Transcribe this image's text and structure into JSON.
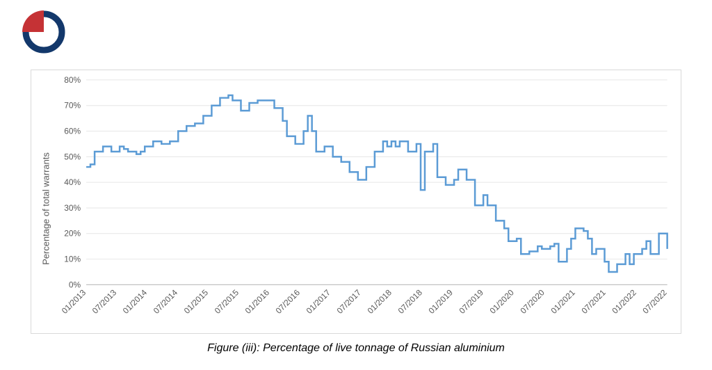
{
  "logo": {
    "ring_color": "#13386b",
    "wedge_color": "#c53235",
    "ring_stroke": 9
  },
  "caption": "Figure (iii): Percentage of live tonnage of Russian aluminium",
  "chart": {
    "type": "line-step",
    "ylabel": "Percentage of total warrants",
    "ylabel_fontsize": 13,
    "xlabel_fontsize": 12,
    "tick_fontsize": 12,
    "background_color": "#ffffff",
    "border_color": "#d9d9d9",
    "grid_color": "#e6e6e6",
    "baseline_color": "#bfbfbf",
    "series_color": "#5b9bd5",
    "series_width": 2.5,
    "ylim": [
      0,
      80
    ],
    "ytick_step": 10,
    "ytick_format_suffix": "%",
    "x_categories": [
      "01/2013",
      "07/2013",
      "01/2014",
      "07/2014",
      "01/2015",
      "07/2015",
      "01/2016",
      "07/2016",
      "01/2017",
      "07/2017",
      "01/2018",
      "07/2018",
      "01/2019",
      "07/2019",
      "01/2020",
      "07/2020",
      "01/2021",
      "07/2021",
      "01/2022",
      "07/2022"
    ],
    "x_points_visible": 120,
    "values": [
      46,
      47,
      52,
      52,
      54,
      54,
      52,
      52,
      54,
      53,
      52,
      52,
      51,
      52,
      54,
      54,
      56,
      56,
      55,
      55,
      56,
      56,
      60,
      60,
      62,
      62,
      63,
      63,
      66,
      66,
      70,
      70,
      73,
      73,
      74,
      72,
      72,
      68,
      68,
      71,
      71,
      72,
      72,
      72,
      72,
      69,
      69,
      64,
      58,
      58,
      55,
      55,
      60,
      66,
      60,
      52,
      52,
      54,
      54,
      50,
      50,
      48,
      48,
      44,
      44,
      41,
      41,
      46,
      46,
      52,
      52,
      56,
      54,
      56,
      54,
      56,
      56,
      52,
      52,
      55,
      37,
      52,
      52,
      55,
      42,
      42,
      39,
      39,
      41,
      45,
      45,
      41,
      41,
      31,
      31,
      35,
      31,
      31,
      25,
      25,
      22,
      17,
      17,
      18,
      12,
      12,
      13,
      13,
      15,
      14,
      14,
      15,
      16,
      9,
      9,
      14,
      18,
      22,
      22,
      21,
      18,
      12,
      14,
      14,
      9,
      5,
      5,
      8,
      8,
      12,
      8,
      12,
      12,
      14,
      17,
      12,
      12,
      20,
      20,
      14
    ]
  }
}
